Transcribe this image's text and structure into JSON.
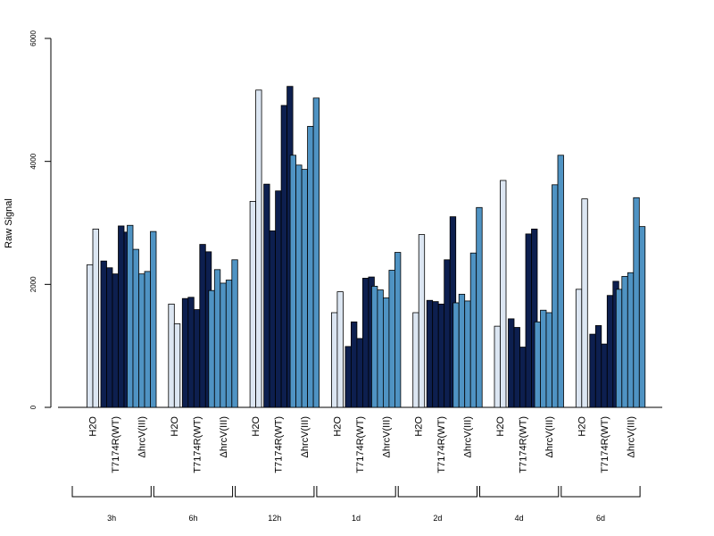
{
  "chart_data": {
    "type": "bar",
    "title": "",
    "ylabel": "Raw Signal",
    "xlabel": "",
    "ylim": [
      0,
      6000
    ],
    "yticks": [
      0,
      2000,
      4000,
      6000
    ],
    "ytick_labels": [
      "0",
      "2000",
      "4000",
      "6000"
    ],
    "colors": {
      "H2O": "#dce6f2",
      "T7174R(WT)": "#0d1f4f",
      "ΔhrcV(III)": "#4f93c3"
    },
    "time_points": [
      {
        "label": "3h",
        "groups": [
          {
            "name": "H2O",
            "values": [
              2320,
              2900
            ]
          },
          {
            "name": "T7174R(WT)",
            "values": [
              2380,
              2270,
              2170,
              2950,
              2850
            ]
          },
          {
            "name": "ΔhrcV(III)",
            "values": [
              2960,
              2570,
              2170,
              2210,
              2860
            ]
          }
        ]
      },
      {
        "label": "6h",
        "groups": [
          {
            "name": "H2O",
            "values": [
              1680,
              1360
            ]
          },
          {
            "name": "T7174R(WT)",
            "values": [
              1770,
              1790,
              1590,
              2650,
              2530
            ]
          },
          {
            "name": "ΔhrcV(III)",
            "values": [
              1900,
              2240,
              2020,
              2070,
              2400
            ]
          }
        ]
      },
      {
        "label": "12h",
        "groups": [
          {
            "name": "H2O",
            "values": [
              3350,
              5160
            ]
          },
          {
            "name": "T7174R(WT)",
            "values": [
              3630,
              2870,
              3520,
              4910,
              5220
            ]
          },
          {
            "name": "ΔhrcV(III)",
            "values": [
              4100,
              3940,
              3870,
              4570,
              5030
            ]
          }
        ]
      },
      {
        "label": "1d",
        "groups": [
          {
            "name": "H2O",
            "values": [
              1540,
              1880
            ]
          },
          {
            "name": "T7174R(WT)",
            "values": [
              990,
              1390,
              1120,
              2100,
              2120
            ]
          },
          {
            "name": "ΔhrcV(III)",
            "values": [
              1970,
              1910,
              1780,
              2230,
              2520
            ]
          }
        ]
      },
      {
        "label": "2d",
        "groups": [
          {
            "name": "H2O",
            "values": [
              1540,
              2810
            ]
          },
          {
            "name": "T7174R(WT)",
            "values": [
              1740,
              1720,
              1680,
              2400,
              3100
            ]
          },
          {
            "name": "ΔhrcV(III)",
            "values": [
              1700,
              1840,
              1730,
              2510,
              3250
            ]
          }
        ]
      },
      {
        "label": "4d",
        "groups": [
          {
            "name": "H2O",
            "values": [
              1320,
              3690
            ]
          },
          {
            "name": "T7174R(WT)",
            "values": [
              1440,
              1300,
              980,
              2820,
              2900
            ]
          },
          {
            "name": "ΔhrcV(III)",
            "values": [
              1390,
              1580,
              1540,
              3620,
              4100
            ]
          }
        ]
      },
      {
        "label": "6d",
        "groups": [
          {
            "name": "H2O",
            "values": [
              1920,
              3390
            ]
          },
          {
            "name": "T7174R(WT)",
            "values": [
              1190,
              1330,
              1030,
              1820,
              2050
            ]
          },
          {
            "name": "ΔhrcV(III)",
            "values": [
              1920,
              2130,
              2190,
              3410,
              2940
            ]
          }
        ]
      }
    ]
  }
}
